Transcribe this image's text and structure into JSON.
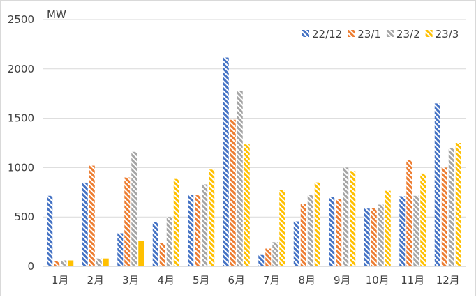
{
  "chart_data": {
    "type": "bar",
    "title": "",
    "xlabel": "",
    "ylabel": "MW",
    "ylim": [
      0,
      2500
    ],
    "yticks": [
      0,
      500,
      1000,
      1500,
      2000,
      2500
    ],
    "grid": true,
    "legend_position": "top-right",
    "categories": [
      "1月",
      "2月",
      "3月",
      "4月",
      "5月",
      "6月",
      "7月",
      "8月",
      "9月",
      "10月",
      "11月",
      "12月"
    ],
    "series": [
      {
        "name": "22/12",
        "color": "#4472c4",
        "pattern": "diagonal-stripes",
        "values": [
          715,
          848,
          335,
          445,
          725,
          2115,
          115,
          455,
          700,
          585,
          710,
          1650
        ]
      },
      {
        "name": "23/1",
        "color": "#ed7d31",
        "pattern": "diagonal-stripes",
        "values": [
          55,
          1020,
          900,
          240,
          720,
          1485,
          180,
          635,
          680,
          590,
          1080,
          1000
        ]
      },
      {
        "name": "23/2",
        "color": "#a5a5a5",
        "pattern": "diagonal-stripes",
        "values": [
          60,
          80,
          1160,
          500,
          830,
          1780,
          245,
          720,
          1000,
          625,
          715,
          1195
        ]
      },
      {
        "name": "23/3",
        "color": "#ffc000",
        "pattern": "mixed",
        "values": [
          60,
          80,
          260,
          885,
          980,
          1235,
          770,
          850,
          965,
          765,
          940,
          1250
        ]
      }
    ]
  }
}
